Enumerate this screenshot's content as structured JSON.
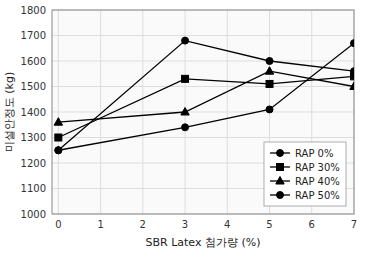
{
  "chart_data": {
    "type": "line",
    "x": [
      0,
      3,
      5,
      7
    ],
    "series": [
      {
        "name": "RAP 0%",
        "values": [
          1250,
          1340,
          1410,
          1670
        ],
        "color": "#000000",
        "marker": "circle"
      },
      {
        "name": "RAP 30%",
        "values": [
          1300,
          1530,
          1510,
          1540
        ],
        "color": "#000000",
        "marker": "square"
      },
      {
        "name": "RAP 40%",
        "values": [
          1360,
          1400,
          1560,
          1500
        ],
        "color": "#000000",
        "marker": "triangle"
      },
      {
        "name": "RAP 50%",
        "values": [
          1250,
          1680,
          1600,
          1560
        ],
        "color": "#000000",
        "marker": "circle"
      }
    ],
    "xlabel": "SBR Latex 첨가량 (%)",
    "ylabel": "미설안정도 (kg)",
    "xlim": [
      -0.15,
      7
    ],
    "ylim": [
      1000,
      1800
    ],
    "xticks": [
      0,
      1,
      2,
      3,
      4,
      5,
      6,
      7
    ],
    "yticks": [
      1000,
      1100,
      1200,
      1300,
      1400,
      1500,
      1600,
      1700,
      1800
    ],
    "grid": true,
    "legend": "lower right"
  }
}
